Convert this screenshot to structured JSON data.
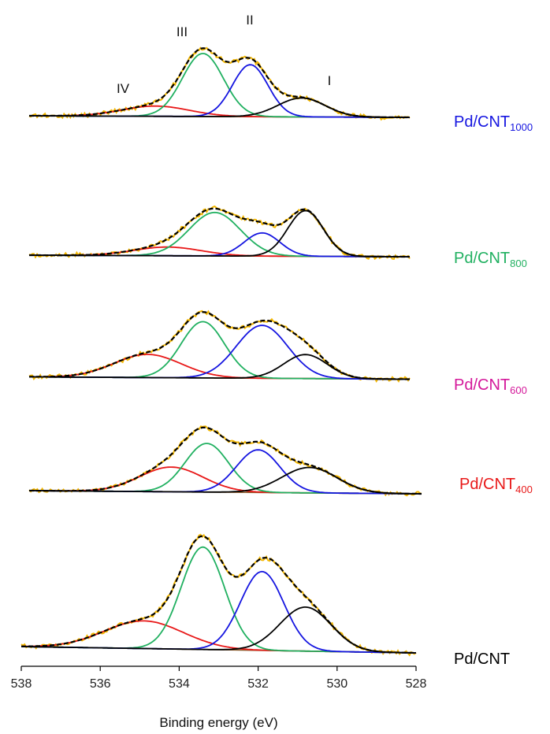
{
  "chart_data": {
    "type": "line",
    "title": "",
    "xlabel": "Binding energy (eV)",
    "ylabel": "",
    "xlim": [
      538,
      528
    ],
    "x_reversed": true,
    "xticks": [
      538,
      536,
      534,
      532,
      530,
      528
    ],
    "grid": false,
    "legend": "none",
    "peak_labels": [
      {
        "label": "IV",
        "x": 535.3
      },
      {
        "label": "III",
        "x": 533.8
      },
      {
        "label": "II",
        "x": 532.2
      },
      {
        "label": "I",
        "x": 530.5
      }
    ],
    "component_colors": {
      "I": "#000000",
      "II": "#1515e0",
      "III": "#20b060",
      "IV": "#e81818",
      "envelope": "#000000",
      "raw": "#f5b800",
      "background": "#8a5a2a"
    },
    "panels": [
      {
        "label": "Pd/CNT",
        "label_main": "Pd/CNT",
        "label_sub": "1000",
        "label_color": "#1515e0",
        "components": [
          {
            "name": "IV",
            "center": 534.6,
            "amplitude": 0.13,
            "sigma": 0.85
          },
          {
            "name": "III",
            "center": 533.4,
            "amplitude": 0.8,
            "sigma": 0.52
          },
          {
            "name": "II",
            "center": 532.2,
            "amplitude": 0.66,
            "sigma": 0.45
          },
          {
            "name": "I",
            "center": 530.9,
            "amplitude": 0.24,
            "sigma": 0.6
          }
        ]
      },
      {
        "label": "Pd/CNT",
        "label_main": "Pd/CNT",
        "label_sub": "800",
        "label_color": "#20b060",
        "components": [
          {
            "name": "IV",
            "center": 534.3,
            "amplitude": 0.12,
            "sigma": 0.85
          },
          {
            "name": "III",
            "center": 533.1,
            "amplitude": 0.6,
            "sigma": 0.65
          },
          {
            "name": "II",
            "center": 531.9,
            "amplitude": 0.32,
            "sigma": 0.45
          },
          {
            "name": "I",
            "center": 530.8,
            "amplitude": 0.63,
            "sigma": 0.45
          }
        ]
      },
      {
        "label": "Pd/CNT",
        "label_main": "Pd/CNT",
        "label_sub": "600",
        "label_color": "#d4179a",
        "components": [
          {
            "name": "IV",
            "center": 534.8,
            "amplitude": 0.28,
            "sigma": 0.85
          },
          {
            "name": "III",
            "center": 533.4,
            "amplitude": 0.68,
            "sigma": 0.55
          },
          {
            "name": "II",
            "center": 531.9,
            "amplitude": 0.64,
            "sigma": 0.65
          },
          {
            "name": "I",
            "center": 530.8,
            "amplitude": 0.29,
            "sigma": 0.55
          }
        ]
      },
      {
        "label": "Pd/CNT",
        "label_main": "Pd/CNT",
        "label_sub": "400",
        "label_color": "#e81818",
        "components": [
          {
            "name": "IV",
            "center": 534.2,
            "amplitude": 0.33,
            "sigma": 0.8
          },
          {
            "name": "III",
            "center": 533.3,
            "amplitude": 0.65,
            "sigma": 0.55
          },
          {
            "name": "II",
            "center": 532.0,
            "amplitude": 0.57,
            "sigma": 0.55
          },
          {
            "name": "I",
            "center": 530.7,
            "amplitude": 0.34,
            "sigma": 0.7
          }
        ]
      },
      {
        "label": "Pd/CNT",
        "label_main": "Pd/CNT",
        "label_sub": "",
        "label_color": "#000000",
        "components": [
          {
            "name": "IV",
            "center": 534.9,
            "amplitude": 0.27,
            "sigma": 1.0
          },
          {
            "name": "III",
            "center": 533.4,
            "amplitude": 1.0,
            "sigma": 0.55
          },
          {
            "name": "II",
            "center": 531.9,
            "amplitude": 0.77,
            "sigma": 0.55
          },
          {
            "name": "I",
            "center": 530.8,
            "amplitude": 0.43,
            "sigma": 0.65
          }
        ]
      }
    ]
  }
}
